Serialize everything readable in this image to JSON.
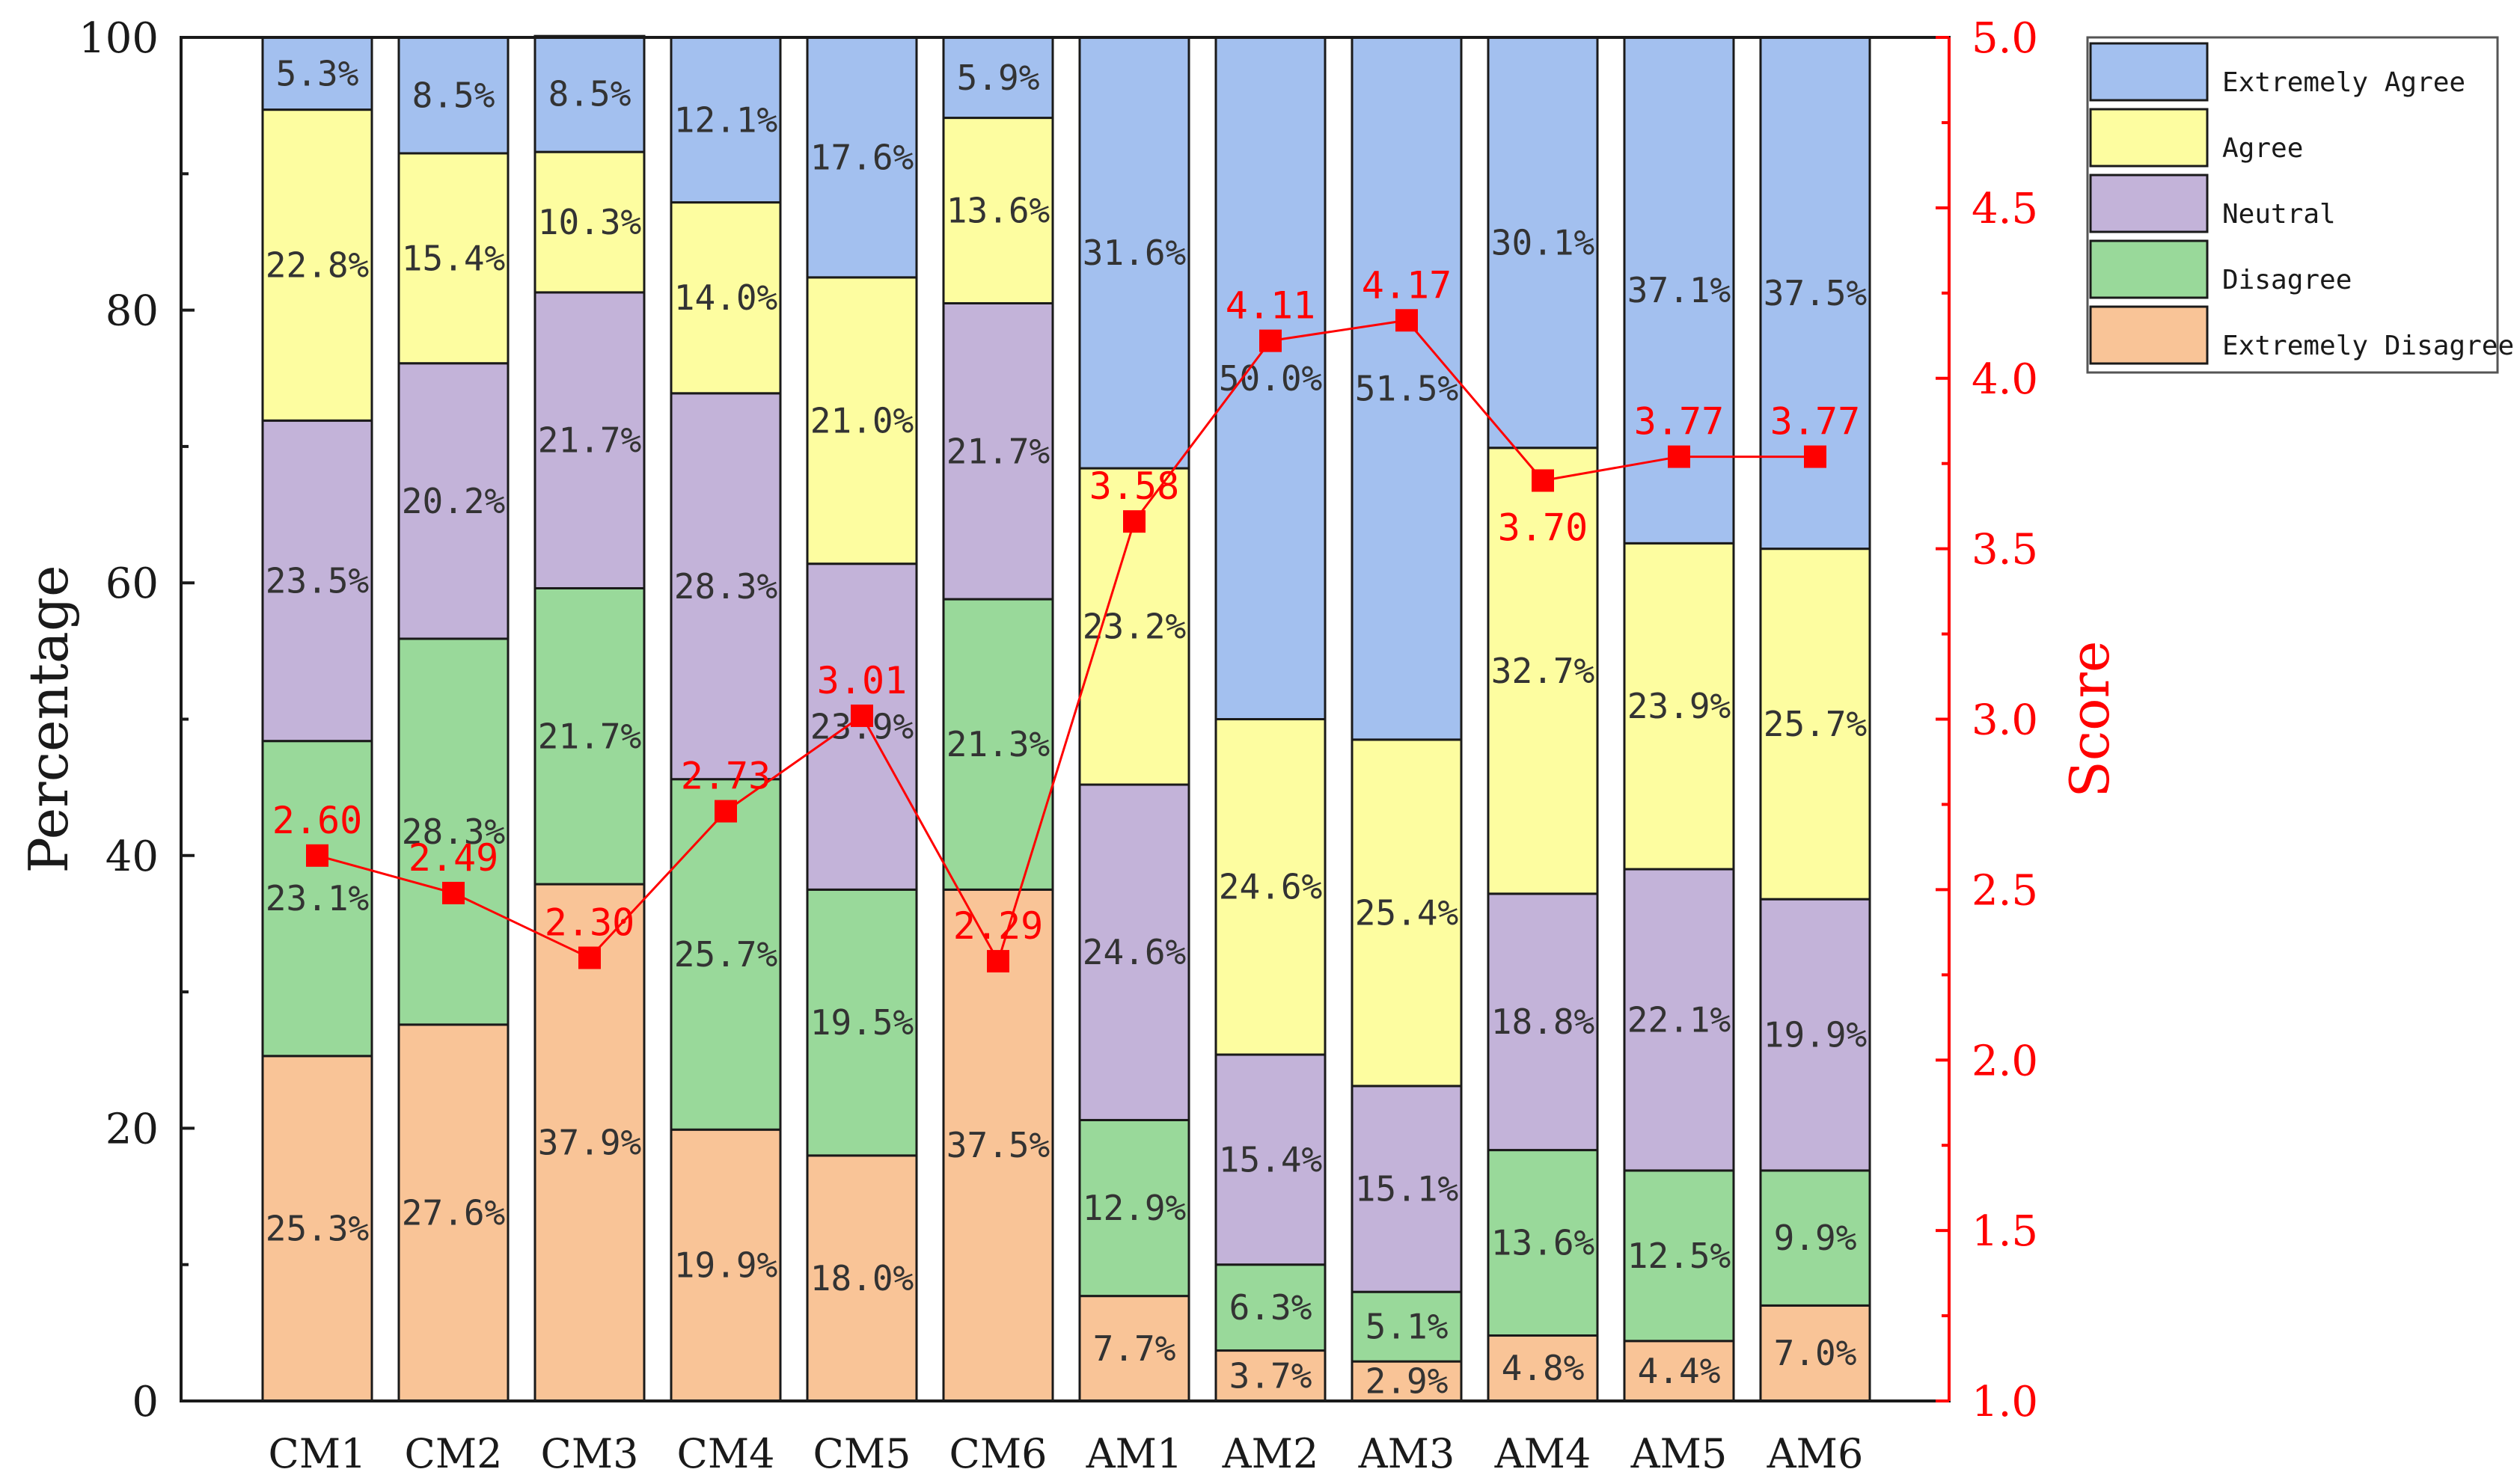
{
  "chart_data": {
    "type": "bar",
    "stacked": true,
    "normalized_percent": true,
    "categories": [
      "CM1",
      "CM2",
      "CM3",
      "CM4",
      "CM5",
      "CM6",
      "AM1",
      "AM2",
      "AM3",
      "AM4",
      "AM5",
      "AM6"
    ],
    "ylabel": "Percentage",
    "ylim": [
      0,
      100
    ],
    "yticks": [
      "0",
      "20",
      "40",
      "60",
      "80",
      "100"
    ],
    "y2label": "Score",
    "y2lim": [
      1.0,
      5.0
    ],
    "y2ticks": [
      "1.0",
      "1.5",
      "2.0",
      "2.5",
      "3.0",
      "3.5",
      "4.0",
      "4.5",
      "5.0"
    ],
    "legend_position": "top-right",
    "series": [
      {
        "name": "Extremely Disagree",
        "color": "#F9C497",
        "values": [
          25.3,
          27.6,
          37.9,
          19.9,
          18.0,
          37.5,
          7.7,
          3.7,
          2.9,
          4.8,
          4.4,
          7.0
        ],
        "labels": [
          "25.3%",
          "27.6%",
          "37.9%",
          "19.9%",
          "18.0%",
          "37.5%",
          "7.7%",
          "3.7%",
          "2.9%",
          "4.8%",
          "4.4%",
          "7.0%"
        ]
      },
      {
        "name": "Disagree",
        "color": "#99D99A",
        "values": [
          23.1,
          28.3,
          21.7,
          25.7,
          19.5,
          21.3,
          12.9,
          6.3,
          5.1,
          13.6,
          12.5,
          9.9
        ],
        "labels": [
          "23.1%",
          "28.3%",
          "21.7%",
          "25.7%",
          "19.5%",
          "21.3%",
          "12.9%",
          "6.3%",
          "5.1%",
          "13.6%",
          "12.5%",
          "9.9%"
        ]
      },
      {
        "name": "Neutral",
        "color": "#C3B3D9",
        "values": [
          23.5,
          20.2,
          21.7,
          28.3,
          23.9,
          21.7,
          24.6,
          15.4,
          15.1,
          18.8,
          22.1,
          19.9
        ],
        "labels": [
          "23.5%",
          "20.2%",
          "21.7%",
          "28.3%",
          "23.9%",
          "21.7%",
          "24.6%",
          "15.4%",
          "15.1%",
          "18.8%",
          "22.1%",
          "19.9%"
        ]
      },
      {
        "name": "Agree",
        "color": "#FDFDA0",
        "values": [
          22.8,
          15.4,
          10.3,
          14.0,
          21.0,
          13.6,
          23.2,
          24.6,
          25.4,
          32.7,
          23.9,
          25.7
        ],
        "labels": [
          "22.8%",
          "15.4%",
          "10.3%",
          "14.0%",
          "21.0%",
          "13.6%",
          "23.2%",
          "24.6%",
          "25.4%",
          "32.7%",
          "23.9%",
          "25.7%"
        ]
      },
      {
        "name": "Extremely Agree",
        "color": "#A3C0EF",
        "values": [
          5.3,
          8.5,
          8.5,
          12.1,
          17.6,
          5.9,
          31.6,
          50.0,
          51.5,
          30.1,
          37.1,
          37.5
        ],
        "labels": [
          "5.3%",
          "8.5%",
          "8.5%",
          "12.1%",
          "17.6%",
          "5.9%",
          "31.6%",
          "50.0%",
          "51.5%",
          "30.1%",
          "37.1%",
          "37.5%"
        ]
      }
    ],
    "legend_order": [
      "Extremely Agree",
      "Agree",
      "Neutral",
      "Disagree",
      "Extremely Disagree"
    ],
    "score_series": {
      "color": "#FF0000",
      "values": [
        2.6,
        2.49,
        2.3,
        2.73,
        3.01,
        2.29,
        3.58,
        4.11,
        4.17,
        3.7,
        3.77,
        3.77
      ],
      "labels": [
        "2.60",
        "2.49",
        "2.30",
        "2.73",
        "3.01",
        "2.29",
        "3.58",
        "4.11",
        "4.17",
        "3.70",
        "3.77",
        "3.77"
      ]
    }
  }
}
